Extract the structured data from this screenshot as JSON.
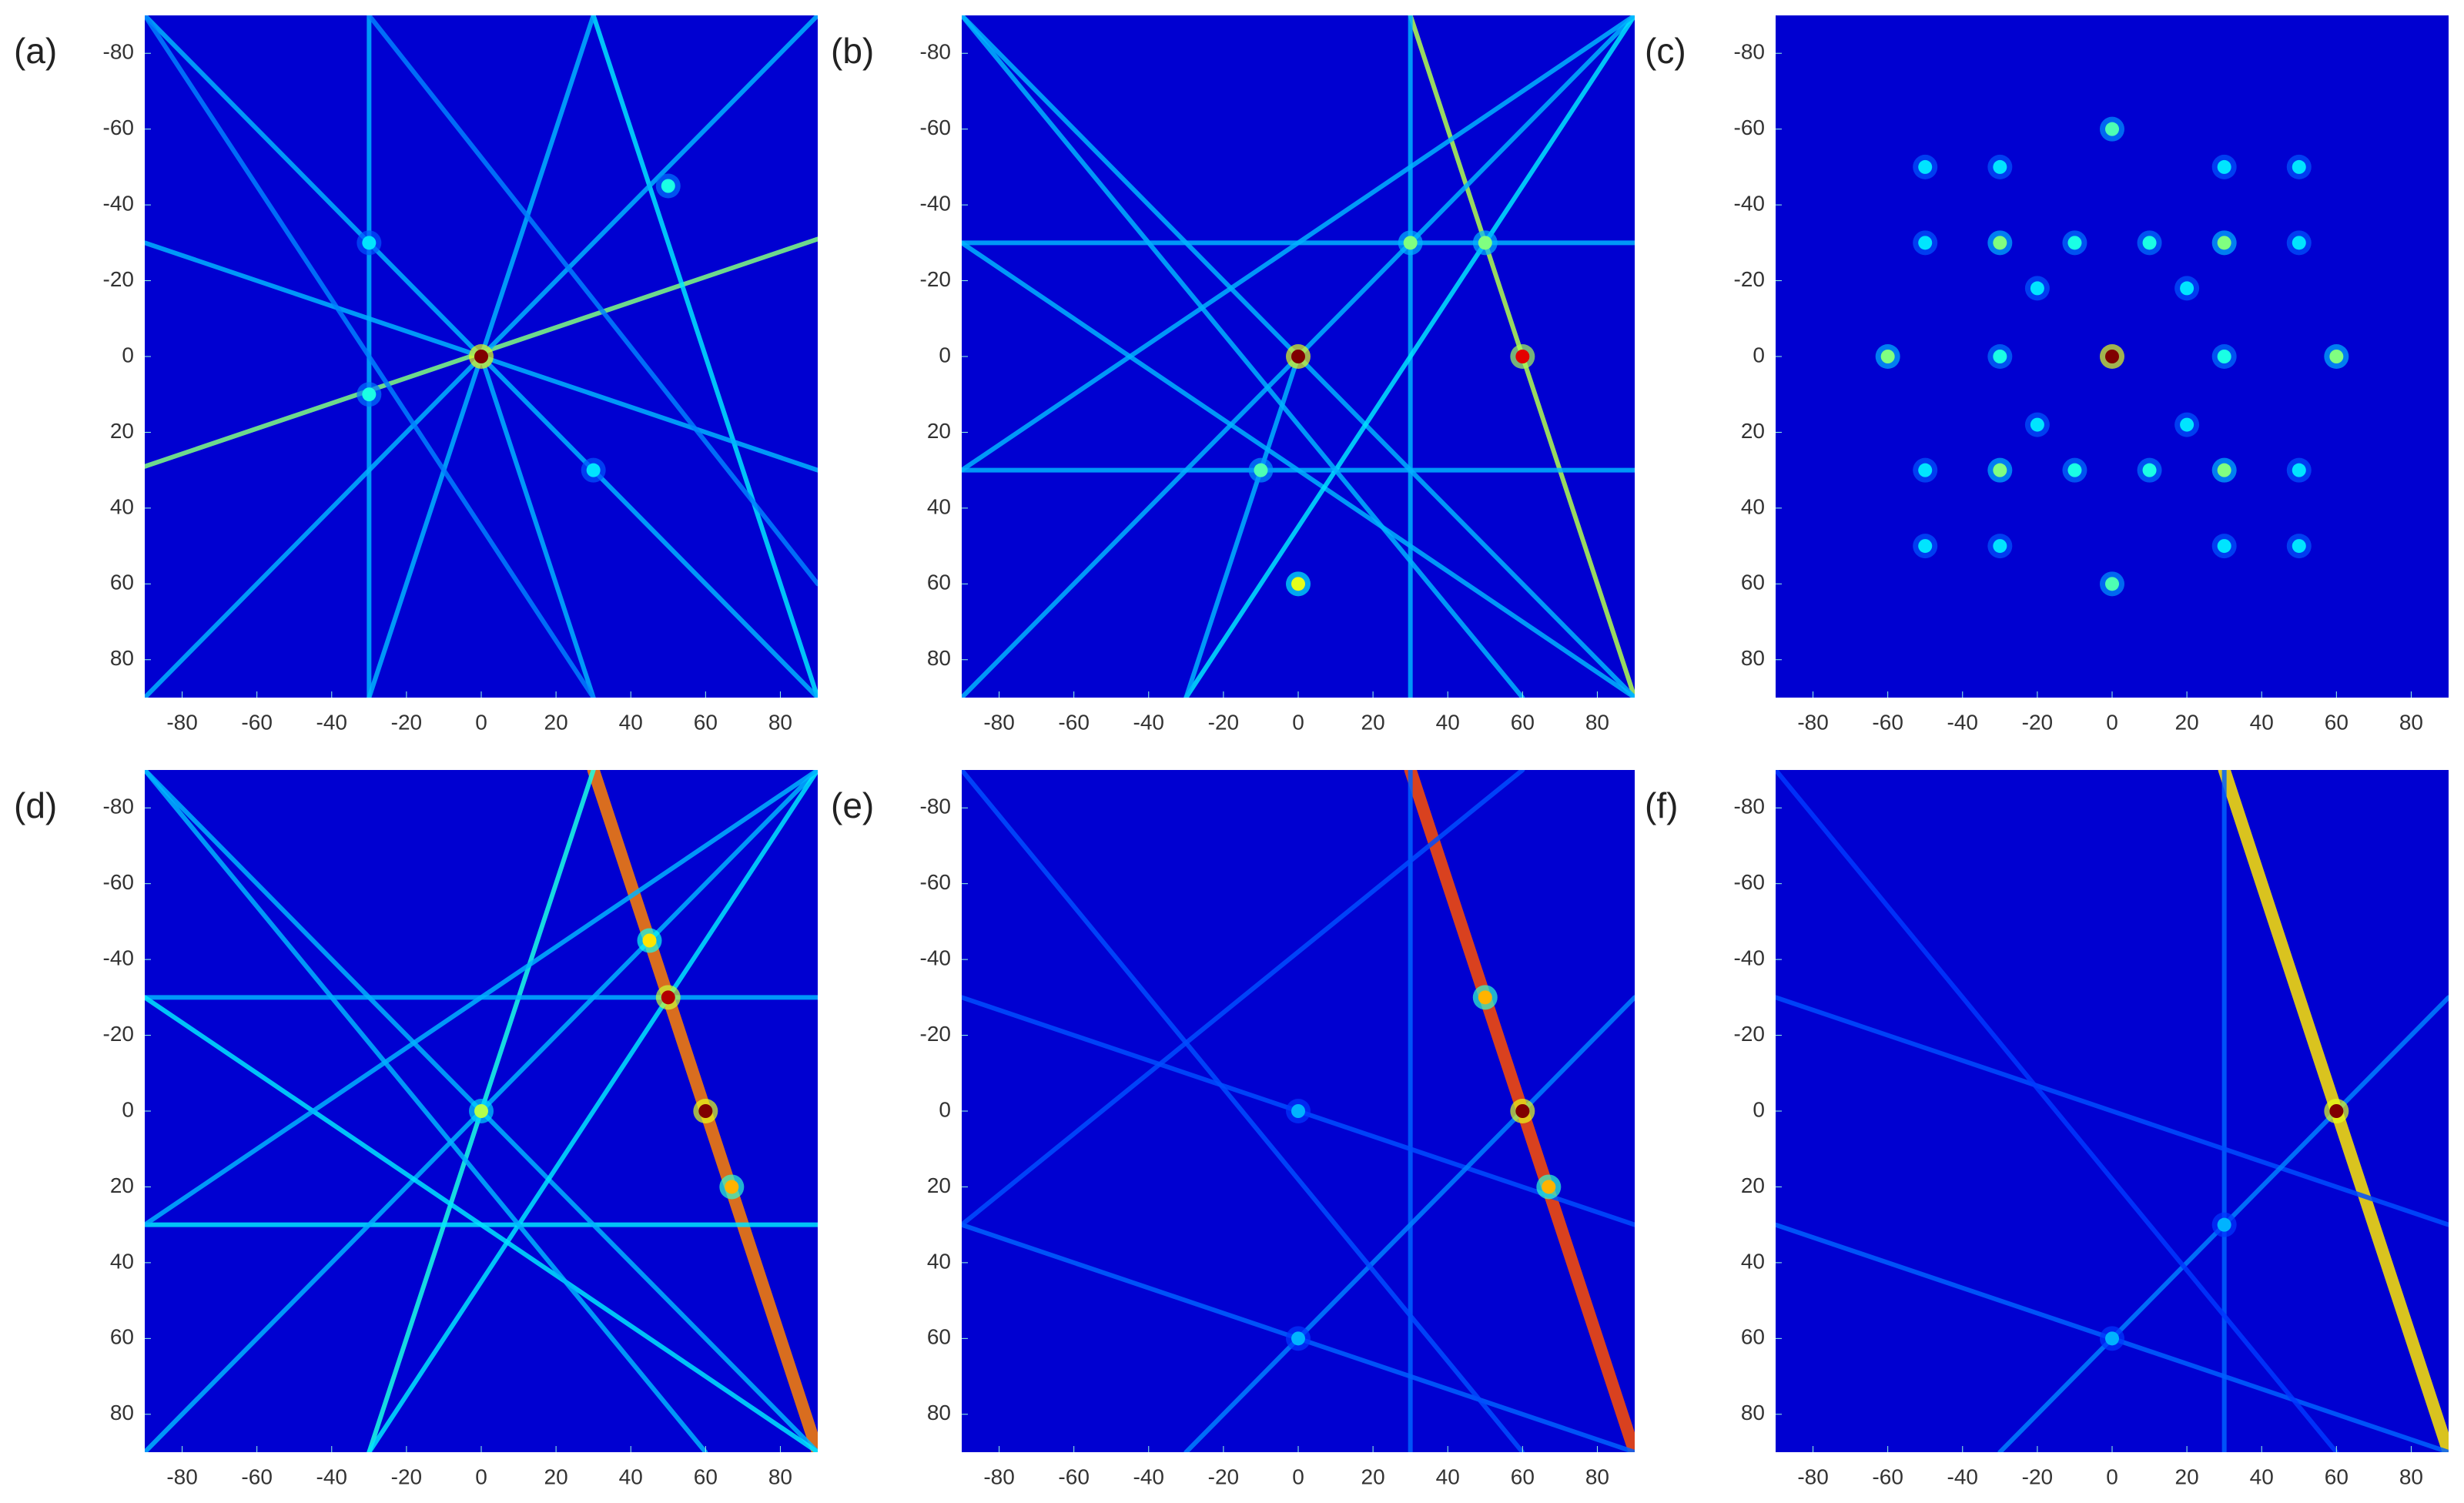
{
  "chart_data": [
    {
      "type": "heatmap",
      "title": "(a)",
      "xlim": [
        -90,
        90
      ],
      "ylim": [
        -90,
        90
      ],
      "y_inverted": true,
      "xticks": [
        -80,
        -60,
        -40,
        -20,
        0,
        20,
        40,
        60,
        80
      ],
      "yticks": [
        -80,
        -60,
        -40,
        -20,
        0,
        20,
        40,
        60,
        80
      ],
      "lines": [
        [
          -90,
          29,
          90,
          -31,
          0.5
        ],
        [
          -30,
          -90,
          -30,
          90,
          0.3
        ],
        [
          30,
          -90,
          90,
          90,
          0.35
        ],
        [
          -90,
          -90,
          90,
          90,
          0.3
        ],
        [
          -90,
          90,
          90,
          -90,
          0.3
        ],
        [
          0,
          0,
          -30,
          90,
          0.3
        ],
        [
          0,
          0,
          30,
          90,
          0.3
        ],
        [
          -90,
          -30,
          90,
          30,
          0.3
        ],
        [
          0,
          0,
          30,
          -90,
          0.3
        ],
        [
          -90,
          -90,
          30,
          90,
          0.25
        ],
        [
          -30,
          -90,
          90,
          60,
          0.25
        ]
      ],
      "peaks": [
        [
          0,
          0,
          1
        ],
        [
          -30,
          10,
          0.4
        ],
        [
          50,
          -45,
          0.4
        ],
        [
          -30,
          -30,
          0.35
        ],
        [
          30,
          30,
          0.35
        ]
      ]
    },
    {
      "type": "heatmap",
      "title": "(b)",
      "xlim": [
        -90,
        90
      ],
      "ylim": [
        -90,
        90
      ],
      "y_inverted": true,
      "xticks": [
        -80,
        -60,
        -40,
        -20,
        0,
        20,
        40,
        60,
        80
      ],
      "yticks": [
        -80,
        -60,
        -40,
        -20,
        0,
        20,
        40,
        60,
        80
      ],
      "lines": [
        [
          30,
          -90,
          90,
          90,
          0.55
        ],
        [
          30,
          -90,
          30,
          90,
          0.3
        ],
        [
          -90,
          -30,
          90,
          -30,
          0.3
        ],
        [
          -90,
          30,
          90,
          30,
          0.3
        ],
        [
          -90,
          -90,
          90,
          90,
          0.3
        ],
        [
          -90,
          90,
          90,
          -90,
          0.3
        ],
        [
          -90,
          -30,
          90,
          90,
          0.3
        ],
        [
          -30,
          90,
          90,
          -90,
          0.35
        ],
        [
          -90,
          30,
          90,
          -90,
          0.3
        ],
        [
          0,
          0,
          -30,
          90,
          0.3
        ],
        [
          -90,
          -90,
          60,
          90,
          0.3
        ]
      ],
      "peaks": [
        [
          0,
          0,
          1
        ],
        [
          60,
          0,
          0.9
        ],
        [
          0,
          60,
          0.6
        ],
        [
          30,
          -30,
          0.5
        ],
        [
          50,
          -30,
          0.5
        ],
        [
          -10,
          30,
          0.45
        ]
      ]
    },
    {
      "type": "heatmap",
      "title": "(c)",
      "xlim": [
        -90,
        90
      ],
      "ylim": [
        -90,
        90
      ],
      "y_inverted": true,
      "xticks": [
        -80,
        -60,
        -40,
        -20,
        0,
        20,
        40,
        60,
        80
      ],
      "yticks": [
        -80,
        -60,
        -40,
        -20,
        0,
        20,
        40,
        60,
        80
      ],
      "lines": [],
      "peaks": [
        [
          0,
          0,
          1
        ],
        [
          -60,
          0,
          0.5
        ],
        [
          60,
          0,
          0.5
        ],
        [
          0,
          -60,
          0.45
        ],
        [
          0,
          60,
          0.45
        ],
        [
          -30,
          -30,
          0.5
        ],
        [
          30,
          -30,
          0.5
        ],
        [
          -30,
          30,
          0.5
        ],
        [
          30,
          30,
          0.5
        ],
        [
          -30,
          0,
          0.4
        ],
        [
          30,
          0,
          0.4
        ],
        [
          -10,
          -30,
          0.4
        ],
        [
          10,
          -30,
          0.4
        ],
        [
          -10,
          30,
          0.4
        ],
        [
          10,
          30,
          0.4
        ],
        [
          -50,
          -30,
          0.35
        ],
        [
          50,
          -30,
          0.35
        ],
        [
          -50,
          30,
          0.35
        ],
        [
          50,
          30,
          0.35
        ],
        [
          -30,
          -50,
          0.35
        ],
        [
          30,
          -50,
          0.35
        ],
        [
          -30,
          50,
          0.35
        ],
        [
          30,
          50,
          0.35
        ],
        [
          -20,
          -18,
          0.35
        ],
        [
          20,
          -18,
          0.35
        ],
        [
          -20,
          18,
          0.35
        ],
        [
          20,
          18,
          0.35
        ],
        [
          -50,
          -50,
          0.35
        ],
        [
          50,
          -50,
          0.35
        ],
        [
          -50,
          50,
          0.35
        ],
        [
          50,
          50,
          0.35
        ]
      ]
    },
    {
      "type": "heatmap",
      "title": "(d)",
      "xlim": [
        -90,
        90
      ],
      "ylim": [
        -90,
        90
      ],
      "y_inverted": true,
      "xticks": [
        -80,
        -60,
        -40,
        -20,
        0,
        20,
        40,
        60,
        80
      ],
      "yticks": [
        -80,
        -60,
        -40,
        -20,
        0,
        20,
        40,
        60,
        80
      ],
      "lines": [
        [
          30,
          -90,
          90,
          90,
          0.75
        ],
        [
          30,
          -90,
          -30,
          90,
          0.4
        ],
        [
          -90,
          -30,
          90,
          -30,
          0.3
        ],
        [
          -90,
          30,
          90,
          30,
          0.35
        ],
        [
          -90,
          -90,
          90,
          90,
          0.3
        ],
        [
          -90,
          90,
          90,
          -90,
          0.3
        ],
        [
          -90,
          -30,
          90,
          90,
          0.35
        ],
        [
          -30,
          90,
          90,
          -90,
          0.35
        ],
        [
          -90,
          30,
          90,
          -90,
          0.3
        ],
        [
          -90,
          -90,
          60,
          90,
          0.3
        ]
      ],
      "peaks": [
        [
          60,
          0,
          1
        ],
        [
          50,
          -30,
          0.95
        ],
        [
          0,
          0,
          0.55
        ],
        [
          67,
          20,
          0.7
        ],
        [
          45,
          -45,
          0.65
        ]
      ]
    },
    {
      "type": "heatmap",
      "title": "(e)",
      "xlim": [
        -90,
        90
      ],
      "ylim": [
        -90,
        90
      ],
      "y_inverted": true,
      "xticks": [
        -80,
        -60,
        -40,
        -20,
        0,
        20,
        40,
        60,
        80
      ],
      "yticks": [
        -80,
        -60,
        -40,
        -20,
        0,
        20,
        40,
        60,
        80
      ],
      "lines": [
        [
          30,
          -90,
          90,
          90,
          0.8
        ],
        [
          30,
          -90,
          30,
          90,
          0.22
        ],
        [
          -90,
          -30,
          90,
          30,
          0.2
        ],
        [
          -90,
          30,
          90,
          90,
          0.22
        ],
        [
          -30,
          90,
          90,
          -30,
          0.25
        ],
        [
          -90,
          -90,
          60,
          90,
          0.2
        ],
        [
          -90,
          30,
          60,
          -90,
          0.2
        ]
      ],
      "peaks": [
        [
          60,
          0,
          1
        ],
        [
          50,
          -30,
          0.7
        ],
        [
          67,
          20,
          0.7
        ],
        [
          0,
          60,
          0.3
        ],
        [
          0,
          0,
          0.3
        ]
      ]
    },
    {
      "type": "heatmap",
      "title": "(f)",
      "xlim": [
        -90,
        90
      ],
      "ylim": [
        -90,
        90
      ],
      "y_inverted": true,
      "xticks": [
        -80,
        -60,
        -40,
        -20,
        0,
        20,
        40,
        60,
        80
      ],
      "yticks": [
        -80,
        -60,
        -40,
        -20,
        0,
        20,
        40,
        60,
        80
      ],
      "lines": [
        [
          30,
          -90,
          90,
          90,
          0.65
        ],
        [
          30,
          -90,
          30,
          90,
          0.22
        ],
        [
          -90,
          -30,
          90,
          30,
          0.2
        ],
        [
          -90,
          30,
          90,
          90,
          0.22
        ],
        [
          -30,
          90,
          90,
          -30,
          0.25
        ],
        [
          -90,
          -90,
          60,
          90,
          0.18
        ]
      ],
      "peaks": [
        [
          60,
          0,
          1
        ],
        [
          0,
          60,
          0.3
        ],
        [
          30,
          30,
          0.3
        ]
      ]
    }
  ]
}
